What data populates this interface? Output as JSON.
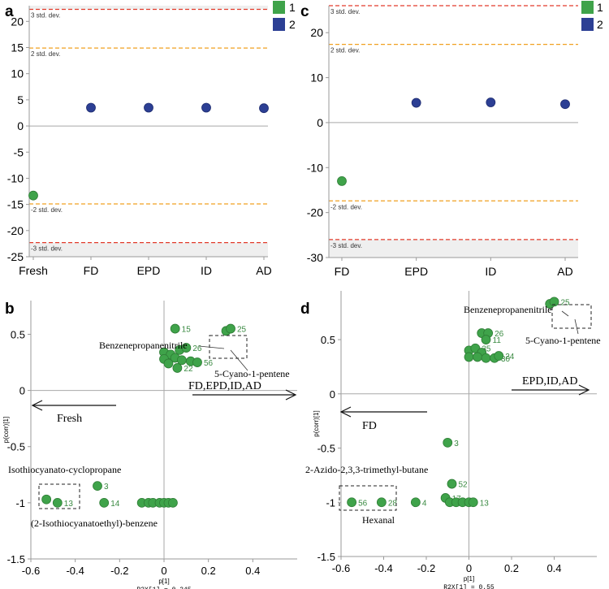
{
  "colors": {
    "group1": "#3fa34a",
    "group2": "#2c3f94",
    "std3": "#e23a2a",
    "std2": "#f0a020",
    "band": "#efefef",
    "zero_line": "#a8a8a8",
    "axis": "#9a9a9a"
  },
  "legend": {
    "items": [
      {
        "name": "1",
        "color": "#3fa34a"
      },
      {
        "name": "2",
        "color": "#2c3f94"
      }
    ]
  },
  "chart_data": [
    {
      "panel": "a",
      "type": "scatter",
      "title": "a",
      "x_categories": [
        "Fresh",
        "FD",
        "EPD",
        "ID",
        "AD"
      ],
      "points": [
        {
          "category": "Fresh",
          "value": -13.3,
          "group": "1"
        },
        {
          "category": "FD",
          "value": 3.5,
          "group": "2"
        },
        {
          "category": "EPD",
          "value": 3.5,
          "group": "2"
        },
        {
          "category": "ID",
          "value": 3.5,
          "group": "2"
        },
        {
          "category": "AD",
          "value": 3.4,
          "group": "2"
        }
      ],
      "ylim": [
        -25,
        23
      ],
      "yticks": [
        -25,
        -20,
        -15,
        -10,
        -5,
        0,
        5,
        10,
        15,
        20
      ],
      "ref_lines": [
        {
          "value": 22.3,
          "label": "3 std. dev.",
          "kind": "std3"
        },
        {
          "value": 14.9,
          "label": "2 std. dev.",
          "kind": "std2"
        },
        {
          "value": -14.9,
          "label": "-2 std. dev.",
          "kind": "std2"
        },
        {
          "value": -22.3,
          "label": "-3 std. dev.",
          "kind": "std3"
        }
      ]
    },
    {
      "panel": "c",
      "type": "scatter",
      "title": "c",
      "x_categories": [
        "FD",
        "EPD",
        "ID",
        "AD"
      ],
      "points": [
        {
          "category": "FD",
          "value": -13,
          "group": "1"
        },
        {
          "category": "EPD",
          "value": 4.4,
          "group": "2"
        },
        {
          "category": "ID",
          "value": 4.5,
          "group": "2"
        },
        {
          "category": "AD",
          "value": 4.1,
          "group": "2"
        }
      ],
      "ylim": [
        -30,
        26
      ],
      "yticks": [
        -30,
        -20,
        -10,
        0,
        10,
        20
      ],
      "ref_lines": [
        {
          "value": 26,
          "label": "3 std. dev.",
          "kind": "std3"
        },
        {
          "value": 17.4,
          "label": "2 std. dev.",
          "kind": "std2"
        },
        {
          "value": -17.4,
          "label": "-2 std. dev.",
          "kind": "std2"
        },
        {
          "value": -26,
          "label": "-3 std. dev.",
          "kind": "std3"
        }
      ]
    },
    {
      "panel": "b",
      "type": "scatter",
      "title": "b",
      "xlabel": "p[1]",
      "ylabel": "p(corr)[1]",
      "footer": "R2X[1] = 0.345",
      "xlim": [
        -0.6,
        0.6
      ],
      "ylim": [
        -1.5,
        0.8
      ],
      "xticks": [
        -0.6,
        -0.4,
        -0.2,
        0,
        0.2,
        0.4
      ],
      "yticks": [
        -1.5,
        -1,
        -0.5,
        0,
        0.5
      ],
      "points": [
        {
          "x": 0.05,
          "y": 0.55,
          "label": "15"
        },
        {
          "x": 0.28,
          "y": 0.53,
          "label": ""
        },
        {
          "x": 0.3,
          "y": 0.55,
          "label": "25"
        },
        {
          "x": 0.07,
          "y": 0.36,
          "label": ""
        },
        {
          "x": 0.1,
          "y": 0.38,
          "label": "26"
        },
        {
          "x": 0.0,
          "y": 0.34,
          "label": ""
        },
        {
          "x": 0.03,
          "y": 0.32,
          "label": ""
        },
        {
          "x": 0.0,
          "y": 0.28,
          "label": ""
        },
        {
          "x": 0.05,
          "y": 0.29,
          "label": ""
        },
        {
          "x": 0.08,
          "y": 0.27,
          "label": ""
        },
        {
          "x": 0.12,
          "y": 0.26,
          "label": ""
        },
        {
          "x": 0.15,
          "y": 0.25,
          "label": "56"
        },
        {
          "x": 0.02,
          "y": 0.24,
          "label": ""
        },
        {
          "x": 0.06,
          "y": 0.2,
          "label": "22"
        },
        {
          "x": -0.3,
          "y": -0.85,
          "label": "3"
        },
        {
          "x": -0.27,
          "y": -1.0,
          "label": "14"
        },
        {
          "x": -0.53,
          "y": -0.97,
          "label": ""
        },
        {
          "x": -0.48,
          "y": -1.0,
          "label": "13"
        },
        {
          "x": -0.1,
          "y": -1.0,
          "label": ""
        },
        {
          "x": -0.07,
          "y": -1.0,
          "label": ""
        },
        {
          "x": -0.05,
          "y": -1.0,
          "label": ""
        },
        {
          "x": -0.02,
          "y": -1.0,
          "label": ""
        },
        {
          "x": 0.0,
          "y": -1.0,
          "label": ""
        },
        {
          "x": 0.02,
          "y": -1.0,
          "label": ""
        },
        {
          "x": 0.04,
          "y": -1.0,
          "label": ""
        }
      ],
      "annotations": {
        "top_compound": "Benzenepropanenitrile",
        "top_compound2": "5-Cyano-1-pentene",
        "right_group": "FD,EPD,ID,AD",
        "left_group": "Fresh",
        "bottom_compound": "Isothiocyanato-cyclopropane",
        "bottom_compound2": "(2-Isothiocyanatoethyl)-benzene"
      }
    },
    {
      "panel": "d",
      "type": "scatter",
      "title": "d",
      "xlabel": "p[1]",
      "ylabel": "p(corr)[1]",
      "footer": "R2X[1] = 0.55",
      "xlim": [
        -0.6,
        0.6
      ],
      "ylim": [
        -1.5,
        0.95
      ],
      "xticks": [
        -0.6,
        -0.4,
        -0.2,
        0,
        0.2,
        0.4
      ],
      "yticks": [
        -1.5,
        -1,
        -0.5,
        0,
        0.5
      ],
      "points": [
        {
          "x": 0.38,
          "y": 0.83,
          "label": ""
        },
        {
          "x": 0.4,
          "y": 0.85,
          "label": "25"
        },
        {
          "x": 0.06,
          "y": 0.56,
          "label": ""
        },
        {
          "x": 0.09,
          "y": 0.56,
          "label": "26"
        },
        {
          "x": 0.08,
          "y": 0.5,
          "label": "11"
        },
        {
          "x": 0.0,
          "y": 0.4,
          "label": ""
        },
        {
          "x": 0.03,
          "y": 0.42,
          "label": "35"
        },
        {
          "x": 0.06,
          "y": 0.38,
          "label": ""
        },
        {
          "x": 0.0,
          "y": 0.34,
          "label": ""
        },
        {
          "x": 0.04,
          "y": 0.34,
          "label": ""
        },
        {
          "x": 0.08,
          "y": 0.33,
          "label": ""
        },
        {
          "x": 0.12,
          "y": 0.33,
          "label": "30"
        },
        {
          "x": 0.14,
          "y": 0.35,
          "label": "24"
        },
        {
          "x": -0.1,
          "y": -0.45,
          "label": "3"
        },
        {
          "x": -0.08,
          "y": -0.83,
          "label": "52"
        },
        {
          "x": -0.11,
          "y": -0.96,
          "label": "17"
        },
        {
          "x": -0.09,
          "y": -1.0,
          "label": ""
        },
        {
          "x": -0.06,
          "y": -1.0,
          "label": ""
        },
        {
          "x": -0.03,
          "y": -1.0,
          "label": ""
        },
        {
          "x": 0.0,
          "y": -1.0,
          "label": ""
        },
        {
          "x": 0.02,
          "y": -1.0,
          "label": "13"
        },
        {
          "x": -0.25,
          "y": -1.0,
          "label": "4"
        },
        {
          "x": -0.41,
          "y": -1.0,
          "label": "28"
        },
        {
          "x": -0.55,
          "y": -1.0,
          "label": "56"
        }
      ],
      "annotations": {
        "top_compound": "Benzenepropanenitrile",
        "top_compound2": "5-Cyano-1-pentene",
        "right_group": "EPD,ID,AD",
        "left_group": "FD",
        "bottom_compound": "2-Azido-2,3,3-trimethyl-butane",
        "bottom_compound2": "Hexanal"
      }
    }
  ]
}
